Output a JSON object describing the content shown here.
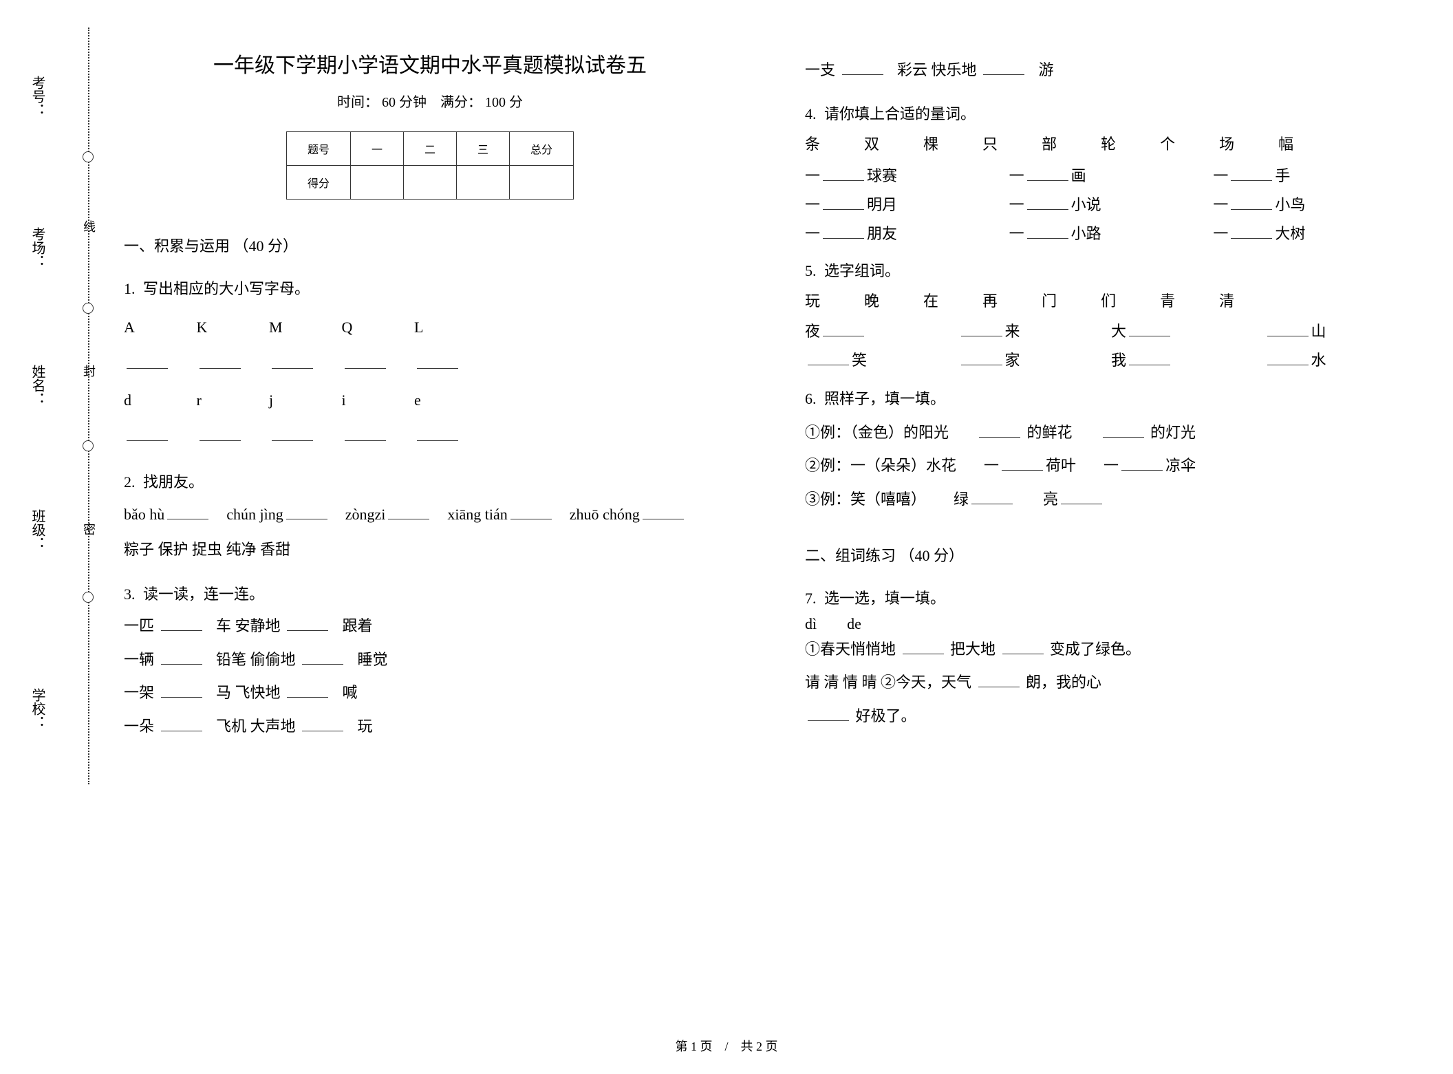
{
  "binding": {
    "labels": [
      "考号：",
      "考场：",
      "姓名：",
      "班级：",
      "学校："
    ],
    "seal_words": [
      "线",
      "封",
      "密"
    ]
  },
  "header": {
    "title": "一年级下学期小学语文期中水平真题模拟试卷五",
    "time_label": "时间：",
    "time_value": "60 分钟",
    "full_label": "满分：",
    "full_value": "100 分"
  },
  "score_table": {
    "row_label": "题号",
    "cols": [
      "一",
      "二",
      "三",
      "总分"
    ],
    "score_label": "得分"
  },
  "section1": {
    "heading": "一、积累与运用 （40 分）",
    "q1": {
      "num": "1.",
      "text": "写出相应的大小写字母。",
      "upper": [
        "A",
        "K",
        "M",
        "Q",
        "L"
      ],
      "lower": [
        "d",
        "r",
        "j",
        "i",
        "e"
      ]
    },
    "q2": {
      "num": "2.",
      "text": "找朋友。",
      "pinyin": [
        "bǎo hù",
        "chún jìng",
        "zòngzi",
        "xiāng tián",
        "zhuō chóng"
      ],
      "words": "粽子  保护          捉虫  纯净  香甜"
    },
    "q3": {
      "num": "3.",
      "text": "读一读，连一连。",
      "rows": [
        [
          "一匹",
          "车",
          "安静地",
          "跟着"
        ],
        [
          "一辆",
          "铅笔",
          "偷偷地",
          "睡觉"
        ],
        [
          "一架",
          "马",
          "飞快地",
          "喊"
        ],
        [
          "一朵",
          "飞机",
          "大声地",
          "玩"
        ],
        [
          "一支",
          "彩云",
          "快乐地",
          "游"
        ]
      ]
    },
    "q4": {
      "num": "4.",
      "text": "请你填上合适的量词。",
      "bank": [
        "条",
        "双",
        "棵",
        "只",
        "部",
        "轮",
        "个",
        "场",
        "幅"
      ],
      "items": [
        "球赛",
        "画",
        "手",
        "明月",
        "小说",
        "小鸟",
        "朋友",
        "小路",
        "大树"
      ]
    },
    "q5": {
      "num": "5.",
      "text": "选字组词。",
      "bank": [
        "玩",
        "晚",
        "在",
        "再",
        "门",
        "们",
        "青",
        "清"
      ],
      "grid": [
        [
          "夜",
          ""
        ],
        [
          "",
          "来"
        ],
        [
          "大",
          ""
        ],
        [
          "",
          "山"
        ],
        [
          "",
          "笑"
        ],
        [
          "",
          "家"
        ],
        [
          "我",
          ""
        ],
        [
          "",
          "水"
        ]
      ]
    },
    "q6": {
      "num": "6.",
      "text": "照样子，填一填。",
      "l1a": "①例：（金色）的阳光",
      "l1b": "的鲜花",
      "l1c": "的灯光",
      "l2a": "②例：一（朵朵）水花",
      "l2b": "一",
      "l2b2": "荷叶",
      "l2c": "一",
      "l2c2": "凉伞",
      "l3a": "③例：笑（嘻嘻）",
      "l3b": "绿",
      "l3c": "亮"
    }
  },
  "section2": {
    "heading": "二、组词练习 （40 分）",
    "q7": {
      "num": "7.",
      "text": "选一选，填一填。",
      "top": "dì        de",
      "l1a": "①春天悄悄地",
      "l1b": "把大地",
      "l1c": "变成了绿色。",
      "l2bank": "请  清  情  晴",
      "l2a": "②今天，天气",
      "l2b": "朗，我的心",
      "l2c": "好极了。"
    }
  },
  "footer": {
    "text": "第 1 页　/　共 2 页"
  }
}
